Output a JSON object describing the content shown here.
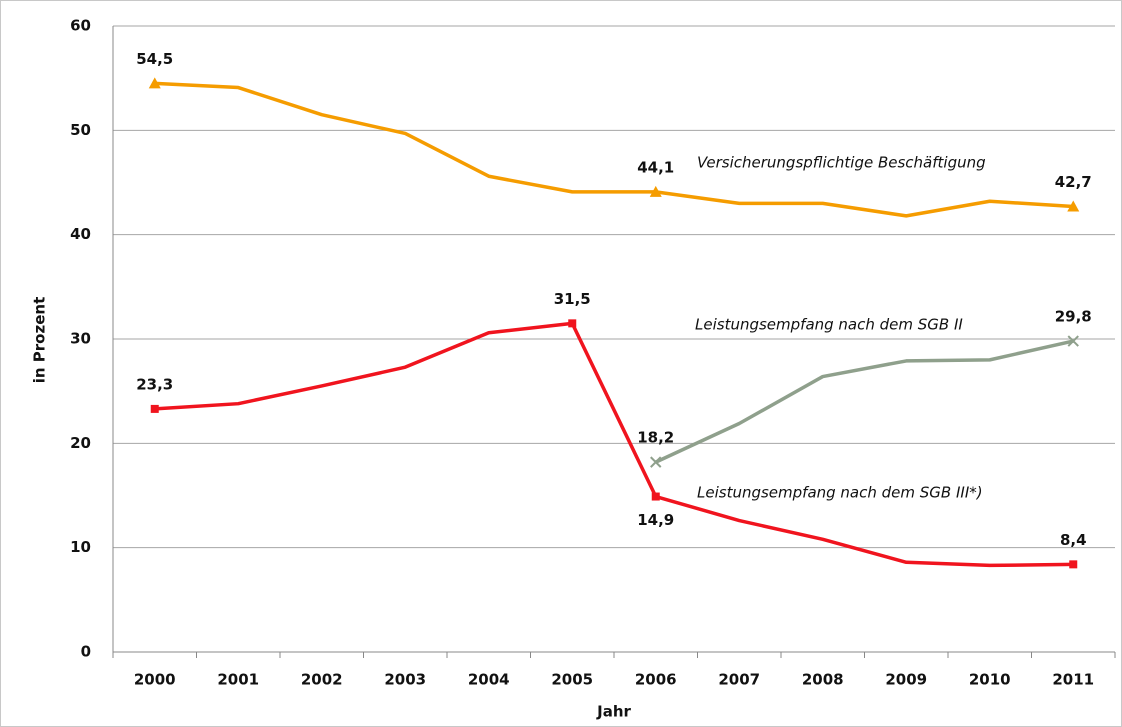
{
  "chart_data": {
    "type": "line",
    "x_label": "Jahr",
    "y_label": "in Prozent",
    "categories": [
      "2000",
      "2001",
      "2002",
      "2003",
      "2004",
      "2005",
      "2006",
      "2007",
      "2008",
      "2009",
      "2010",
      "2011"
    ],
    "ylim": [
      0,
      60
    ],
    "yticks": [
      0,
      10,
      20,
      30,
      40,
      50,
      60
    ],
    "grid": true,
    "series": [
      {
        "name": "Versicherungspflichtige Beschäftigung",
        "color": "#f59c00",
        "marker": "triangle",
        "values": [
          54.5,
          54.1,
          51.5,
          49.7,
          45.6,
          44.1,
          44.1,
          43.0,
          43.0,
          41.8,
          43.2,
          42.7
        ],
        "value_labels": [
          "54,5",
          null,
          null,
          null,
          null,
          null,
          "44,1",
          null,
          null,
          null,
          null,
          "42,7"
        ]
      },
      {
        "name": "Leistungsempfang nach dem SGB II",
        "color": "#8fa08c",
        "marker": "x",
        "values": [
          null,
          null,
          null,
          null,
          null,
          null,
          18.2,
          21.9,
          26.4,
          27.9,
          28.0,
          29.8
        ],
        "value_labels": [
          null,
          null,
          null,
          null,
          null,
          null,
          "18,2",
          null,
          null,
          null,
          null,
          "29,8"
        ]
      },
      {
        "name": "Leistungsempfang nach dem SGB III*)",
        "color": "#f0141e",
        "marker": "square",
        "values": [
          23.3,
          23.8,
          25.5,
          27.3,
          30.6,
          31.5,
          14.9,
          12.6,
          10.8,
          8.6,
          8.3,
          8.4
        ],
        "value_labels": [
          "23,3",
          null,
          null,
          null,
          null,
          "31,5",
          "14,9",
          null,
          null,
          null,
          null,
          "8,4"
        ]
      }
    ]
  }
}
